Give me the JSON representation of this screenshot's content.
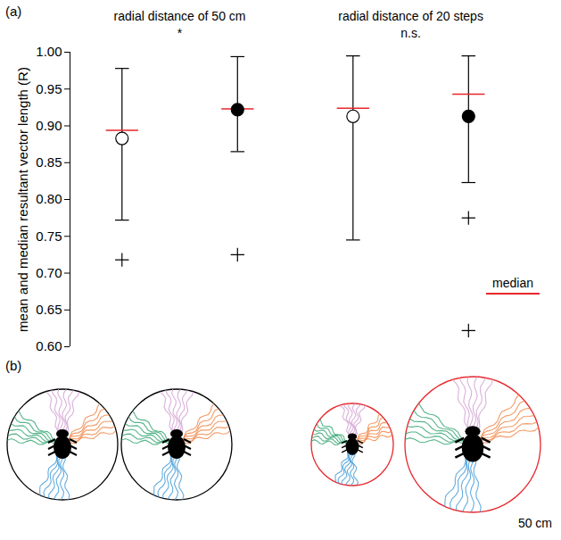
{
  "chart_data": [
    {
      "type": "errorbar",
      "panel_label": "(a)",
      "y_label": "mean and median resultant vector length (R)",
      "ylim": [
        0.6,
        1.0
      ],
      "yticks": [
        {
          "value": 0.6,
          "label": "0.60"
        },
        {
          "value": 0.65,
          "label": "0.65"
        },
        {
          "value": 0.7,
          "label": "0.70"
        },
        {
          "value": 0.75,
          "label": "0.75"
        },
        {
          "value": 0.8,
          "label": "0.80"
        },
        {
          "value": 0.85,
          "label": "0.85"
        },
        {
          "value": 0.9,
          "label": "0.90"
        },
        {
          "value": 0.95,
          "label": "0.95"
        },
        {
          "value": 1.0,
          "label": "1.00"
        }
      ],
      "groups": [
        {
          "title": "radial distance of 50 cm",
          "significance": "*"
        },
        {
          "title": "radial distance of 20 steps",
          "significance": "n.s."
        }
      ],
      "items": [
        {
          "group": 0,
          "marker": "open",
          "mean": 0.883,
          "whisker": [
            0.772,
            0.978
          ],
          "outliers": [
            0.718
          ]
        },
        {
          "group": 0,
          "marker": "filled",
          "mean": 0.922,
          "whisker": [
            0.865,
            0.994
          ],
          "outliers": [
            0.725
          ]
        },
        {
          "group": 1,
          "marker": "open",
          "mean": 0.913,
          "whisker": [
            0.745,
            0.995
          ],
          "outliers": []
        },
        {
          "group": 1,
          "marker": "filled",
          "mean": 0.913,
          "whisker": [
            0.823,
            0.995
          ],
          "outliers": [
            0.775,
            0.622
          ]
        }
      ],
      "median": {
        "name": "median",
        "color": "#e8262b",
        "values": [
          0.894,
          0.923,
          0.924,
          0.943
        ]
      },
      "legend": "lower right"
    },
    {
      "type": "diagram",
      "panel_label": "(b)",
      "circle_colors": [
        "#000000",
        "#000000",
        "#e8262b",
        "#e8262b"
      ],
      "track_colors": [
        "#3aa776",
        "#d4a3d4",
        "#f08a4b",
        "#4a9fd8"
      ],
      "scale_bar_label": "50 cm"
    }
  ]
}
